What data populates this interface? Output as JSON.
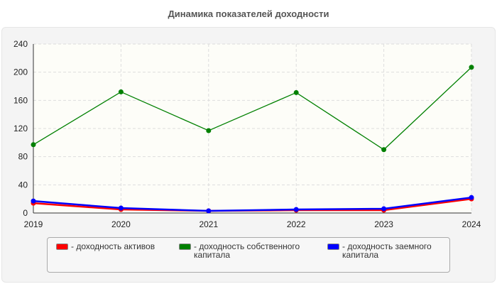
{
  "chart_data": {
    "type": "line",
    "title": "Динамика показателей доходности",
    "x": [
      "2019",
      "2020",
      "2021",
      "2022",
      "2023",
      "2024"
    ],
    "ylim": [
      0,
      240
    ],
    "yticks": [
      0,
      40,
      80,
      120,
      160,
      200,
      240
    ],
    "grid": true,
    "legend_position": "bottom",
    "series": [
      {
        "name": "- доходность активов",
        "color": "#ff0000",
        "values": [
          14,
          5,
          3,
          4,
          4,
          20
        ]
      },
      {
        "name": "- доходность собственного капитала",
        "color": "#008000",
        "values": [
          97,
          172,
          117,
          171,
          90,
          207
        ]
      },
      {
        "name": "- доходность заемного капитала",
        "color": "#0000ff",
        "values": [
          17,
          7,
          3,
          5,
          6,
          22
        ]
      }
    ]
  }
}
